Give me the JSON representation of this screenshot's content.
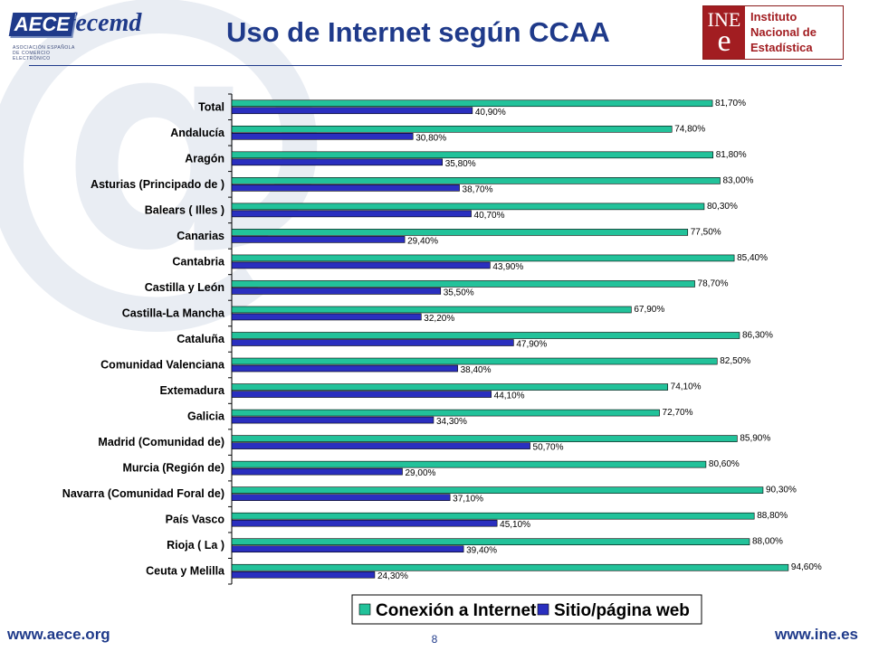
{
  "header": {
    "title": "Uso de Internet según CCAA",
    "aece_logo": {
      "box": "AECE",
      "name": "fecemd",
      "subtitle": "ASOCIACIÓN ESPAÑOLA DE COMERCIO ELECTRÓNICO"
    },
    "ine_logo": {
      "mark_top": "INE",
      "mark_letter": "e",
      "lines": [
        "Instituto",
        "Nacional de",
        "Estadística"
      ]
    }
  },
  "footer": {
    "left_url": "www.aece.org",
    "right_url": "www.ine.es",
    "page_number": "8"
  },
  "colors": {
    "series1": "#22c29a",
    "series2": "#2a2fbf",
    "title": "#1f3a8a",
    "ine_red": "#a21d21"
  },
  "chart_data": {
    "type": "bar",
    "orientation": "horizontal",
    "title": "",
    "categories": [
      "Total",
      "Andalucía",
      "Aragón",
      "Asturias (Principado de )",
      "Balears ( Illes )",
      "Canarias",
      "Cantabria",
      "Castilla y León",
      "Castilla-La Mancha",
      "Cataluña",
      "Comunidad Valenciana",
      "Extemadura",
      "Galicia",
      "Madrid (Comunidad de)",
      "Murcia (Región de)",
      "Navarra (Comunidad Foral de)",
      "País Vasco",
      "Rioja ( La )",
      "Ceuta y Melilla"
    ],
    "series": [
      {
        "name": "Conexión a Internet",
        "values": [
          81.7,
          74.8,
          81.8,
          83.0,
          80.3,
          77.5,
          85.4,
          78.7,
          67.9,
          86.3,
          82.5,
          74.1,
          72.7,
          85.9,
          80.6,
          90.3,
          88.8,
          88.0,
          94.6
        ],
        "labels": [
          "81,70%",
          "74,80%",
          "81,80%",
          "83,00%",
          "80,30%",
          "77,50%",
          "85,40%",
          "78,70%",
          "67,90%",
          "86,30%",
          "82,50%",
          "74,10%",
          "72,70%",
          "85,90%",
          "80,60%",
          "90,30%",
          "88,80%",
          "88,00%",
          "94,60%"
        ]
      },
      {
        "name": "Sitio/página web",
        "values": [
          40.9,
          30.8,
          35.8,
          38.7,
          40.7,
          29.4,
          43.9,
          35.5,
          32.2,
          47.9,
          38.4,
          44.1,
          34.3,
          50.7,
          29.0,
          37.1,
          45.1,
          39.4,
          24.3
        ],
        "labels": [
          "40,90%",
          "30,80%",
          "35,80%",
          "38,70%",
          "40,70%",
          "29,40%",
          "43,90%",
          "35,50%",
          "32,20%",
          "47,90%",
          "38,40%",
          "44,10%",
          "34,30%",
          "50,70%",
          "29,00%",
          "37,10%",
          "45,10%",
          "39,40%",
          "24,30%"
        ]
      }
    ],
    "xlim": [
      0,
      100
    ],
    "grid": false,
    "legend_position": "bottom-right"
  }
}
